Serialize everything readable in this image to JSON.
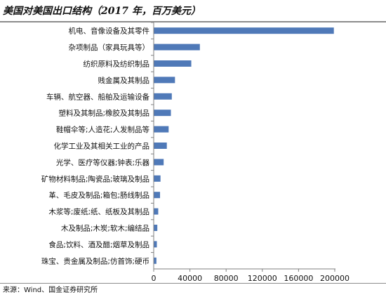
{
  "title": "美国对美国出口结构（2017 年，百万美元）",
  "source": "来源：Wind、国金证券研究所",
  "colors": {
    "bar": "#4f79b8",
    "axis": "#7f7f7f"
  },
  "chart_data": {
    "type": "bar",
    "orientation": "horizontal",
    "title": "美国对美国出口结构（2017 年，百万美元）",
    "categories": [
      "机电、音像设备及其零件",
      "杂项制品（家具玩具等）",
      "纺织原料及纺织制品",
      "贱金属及其制品",
      "车辆、航空器、船舶及运输设备",
      "塑料及其制品;橡胶及其制品",
      "鞋帽伞等;人造花;人发制品等",
      "化学工业及其相关工业的产品",
      "光学、医疗等仪器;钟表;乐器",
      "矿物材料制品;陶瓷品;玻璃及制品",
      "革、毛皮及制品;箱包;肠线制品",
      "木浆等;废纸;纸、纸板及其制品",
      "木及制品;木炭;软木;编结品",
      "食品;饮料、酒及醋;烟草及制品",
      "珠宝、贵金属及制品;仿首饰;硬币"
    ],
    "values": [
      199000,
      51000,
      41500,
      23500,
      20000,
      19000,
      16500,
      14500,
      11000,
      7500,
      7000,
      5000,
      4000,
      3500,
      3000
    ],
    "xlim": [
      0,
      200000
    ],
    "xticks": [
      0,
      40000,
      80000,
      120000,
      160000,
      200000
    ],
    "xticklabels": [
      "0",
      "40000",
      "80000",
      "120000",
      "160000",
      "200000"
    ],
    "xlabel": "",
    "ylabel": "",
    "grid": false,
    "legend": "none"
  }
}
